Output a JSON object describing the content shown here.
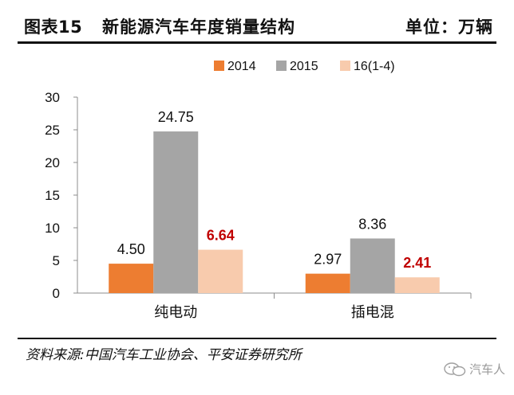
{
  "header": {
    "figure_no": "图表15",
    "title": "新能源汽车年度销量结构",
    "unit": "单位：万辆"
  },
  "chart_data": {
    "type": "bar",
    "categories": [
      "纯电动",
      "插电混"
    ],
    "series": [
      {
        "name": "2014",
        "values": [
          4.5,
          2.97
        ],
        "labels": [
          "4.50",
          "2.97"
        ],
        "color": "#ed7d31"
      },
      {
        "name": "2015",
        "values": [
          24.75,
          8.36
        ],
        "labels": [
          "24.75",
          "8.36"
        ],
        "color": "#a5a5a5"
      },
      {
        "name": "16(1-4)",
        "values": [
          6.64,
          2.41
        ],
        "labels": [
          "6.64",
          "2.41"
        ],
        "color": "#f8cbad",
        "label_color": "#c00000"
      }
    ],
    "ylim": [
      0,
      30
    ],
    "yticks": [
      "0",
      "5",
      "10",
      "15",
      "20",
      "25",
      "30"
    ],
    "legend_position": "top",
    "grid": false
  },
  "footer": {
    "source": "资料来源:中国汽车工业协会、平安证券研究所",
    "watermark": "汽车人",
    "watermark_icon": "wechat-icon"
  }
}
